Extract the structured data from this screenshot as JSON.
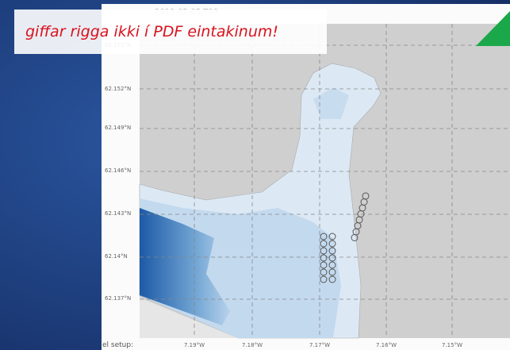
{
  "banner": {
    "text": "giffar rigga ikki í PDF eintakinum!"
  },
  "map": {
    "timestamp": "2019-02-05 T00",
    "lat_labels": [
      "62.155°N",
      "62.152°N",
      "62.149°N",
      "62.146°N",
      "62.143°N",
      "62.14°N",
      "62.137°N"
    ],
    "lon_labels": [
      "7.19°W",
      "7.18°W",
      "7.17°W",
      "7.16°W",
      "7.15°W"
    ],
    "footer_fragment": "el setup:"
  }
}
